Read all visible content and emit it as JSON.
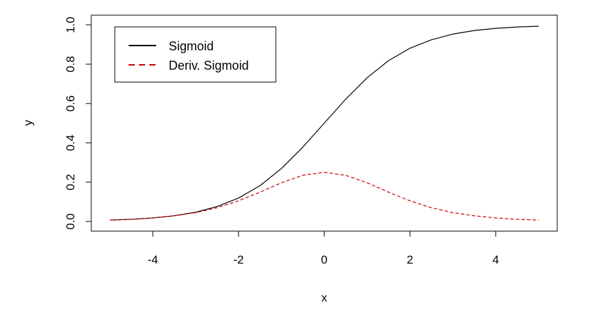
{
  "chart_data": {
    "type": "line",
    "xlabel": "x",
    "ylabel": "y",
    "xlim": [
      -5,
      5
    ],
    "ylim": [
      0,
      1
    ],
    "x_ticks": [
      -4,
      -2,
      0,
      2,
      4
    ],
    "y_ticks": [
      0.0,
      0.2,
      0.4,
      0.6,
      0.8,
      1.0
    ],
    "y_tick_labels": [
      "0.0",
      "0.2",
      "0.4",
      "0.6",
      "0.8",
      "1.0"
    ],
    "x": [
      -5,
      -4.5,
      -4,
      -3.5,
      -3,
      -2.5,
      -2,
      -1.5,
      -1,
      -0.5,
      0,
      0.5,
      1,
      1.5,
      2,
      2.5,
      3,
      3.5,
      4,
      4.5,
      5
    ],
    "series": [
      {
        "name": "Sigmoid",
        "line_style": "solid",
        "color": "#000000",
        "values": [
          0.007,
          0.011,
          0.018,
          0.029,
          0.047,
          0.076,
          0.119,
          0.182,
          0.269,
          0.378,
          0.5,
          0.622,
          0.731,
          0.818,
          0.881,
          0.924,
          0.953,
          0.971,
          0.982,
          0.989,
          0.993
        ]
      },
      {
        "name": "Deriv. Sigmoid",
        "line_style": "dashed",
        "color": "#cc0000",
        "values": [
          0.007,
          0.011,
          0.018,
          0.029,
          0.045,
          0.07,
          0.105,
          0.149,
          0.197,
          0.235,
          0.25,
          0.235,
          0.197,
          0.149,
          0.105,
          0.07,
          0.045,
          0.029,
          0.018,
          0.011,
          0.007
        ]
      }
    ],
    "legend": {
      "position": "top-left"
    },
    "grid": false
  }
}
